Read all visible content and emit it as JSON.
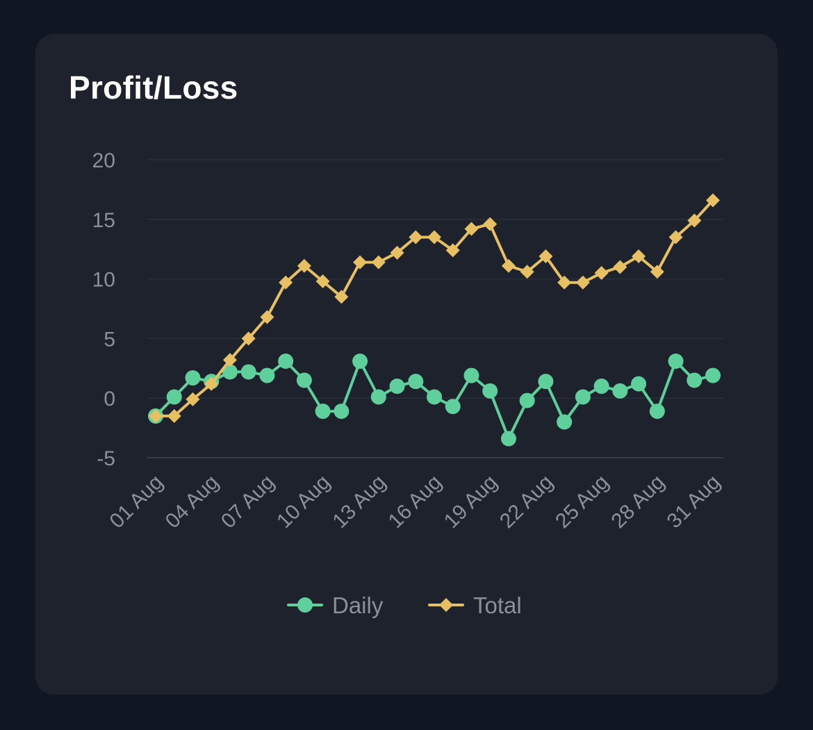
{
  "card": {
    "title": "Profit/Loss"
  },
  "colors": {
    "page_bg": "#111722",
    "card_bg": "#1d222d",
    "grid": "#2a2f39",
    "baseline": "#3a3e48",
    "tick_text": "#8b909b",
    "daily": "#5fd09b",
    "total": "#e7c063"
  },
  "chart_data": {
    "type": "line",
    "title": "Profit/Loss",
    "xlabel": "",
    "ylabel": "",
    "ylim": [
      -5,
      20
    ],
    "yticks": [
      20,
      15,
      10,
      5,
      0,
      -5
    ],
    "yticklabels": [
      "20",
      "15",
      "10",
      "5",
      "0",
      "-5"
    ],
    "grid": true,
    "legend": "bottom-center",
    "categories": [
      "01 Aug",
      "02 Aug",
      "03 Aug",
      "04 Aug",
      "05 Aug",
      "06 Aug",
      "07 Aug",
      "08 Aug",
      "09 Aug",
      "10 Aug",
      "11 Aug",
      "12 Aug",
      "13 Aug",
      "14 Aug",
      "15 Aug",
      "16 Aug",
      "17 Aug",
      "18 Aug",
      "19 Aug",
      "20 Aug",
      "21 Aug",
      "22 Aug",
      "23 Aug",
      "24 Aug",
      "25 Aug",
      "26 Aug",
      "27 Aug",
      "28 Aug",
      "29 Aug",
      "30 Aug",
      "31 Aug"
    ],
    "xtick_labels": [
      "01 Aug",
      "04 Aug",
      "07 Aug",
      "10 Aug",
      "13 Aug",
      "16 Aug",
      "19 Aug",
      "22 Aug",
      "25 Aug",
      "28 Aug",
      "31 Aug"
    ],
    "series": [
      {
        "name": "Daily",
        "marker": "circle",
        "values": [
          -1.5,
          0.1,
          1.7,
          1.4,
          2.2,
          2.2,
          1.9,
          3.1,
          1.5,
          -1.1,
          -1.1,
          3.1,
          0.1,
          1.0,
          1.4,
          0.1,
          -0.7,
          1.9,
          0.6,
          -3.4,
          -0.2,
          1.4,
          -2.0,
          0.1,
          1.0,
          0.6,
          1.2,
          -1.1,
          3.1,
          1.5,
          1.9
        ]
      },
      {
        "name": "Total",
        "marker": "diamond",
        "values": [
          -1.5,
          -1.5,
          -0.1,
          1.2,
          3.2,
          5.0,
          6.8,
          9.7,
          11.1,
          9.8,
          8.5,
          11.4,
          11.4,
          12.2,
          13.5,
          13.5,
          12.4,
          14.2,
          14.6,
          11.1,
          10.6,
          11.9,
          9.7,
          9.7,
          10.5,
          11.0,
          11.9,
          10.6,
          13.5,
          14.9,
          16.6
        ]
      }
    ]
  }
}
